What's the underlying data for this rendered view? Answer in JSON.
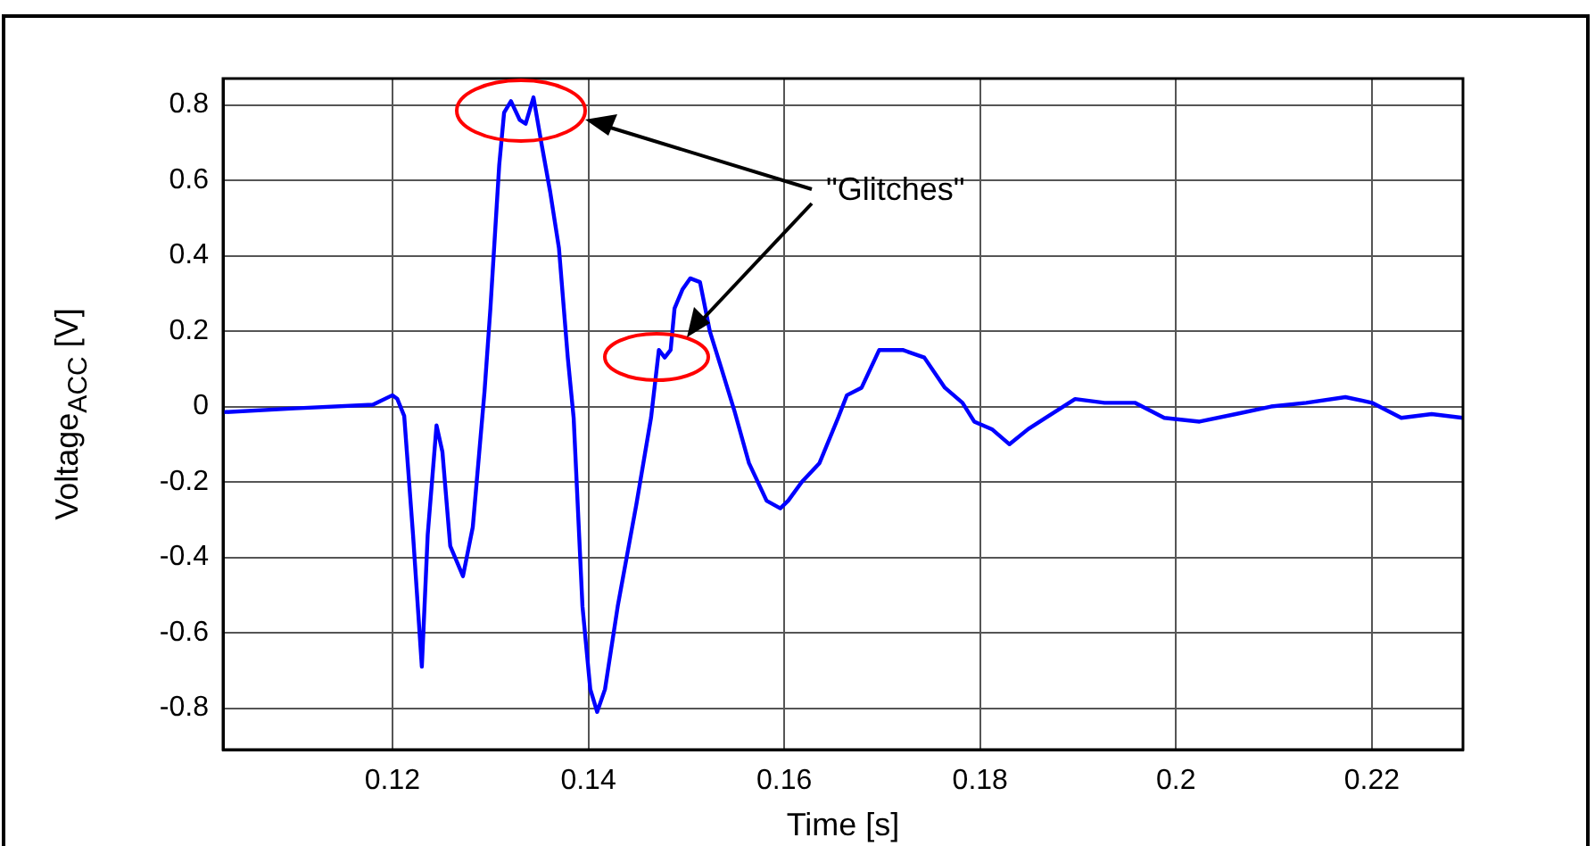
{
  "chart_data": {
    "type": "line",
    "xlabel": "Time [s]",
    "ylabel": "Voltage$_{ACC}$ [V]",
    "annotations": [
      "\"Glitches\""
    ],
    "xlim": [
      0.1027,
      0.2293
    ],
    "ylim": [
      -0.91,
      0.87
    ],
    "xticks": [
      0.12,
      0.14,
      0.16,
      0.18,
      0.2,
      0.22
    ],
    "yticks": [
      -0.8,
      -0.6,
      -0.4,
      -0.2,
      0,
      0.2,
      0.4,
      0.6,
      0.8
    ],
    "grid": true,
    "legend": false,
    "marker": "none",
    "line_style": "solid",
    "series": [
      {
        "color": "#0000ff",
        "x": [
          0.1027,
          0.11,
          0.118,
          0.12,
          0.1205,
          0.1212,
          0.1221,
          0.123,
          0.1236,
          0.1245,
          0.1251,
          0.1259,
          0.1272,
          0.1282,
          0.1294,
          0.13,
          0.1309,
          0.1314,
          0.1321,
          0.133,
          0.1336,
          0.1344,
          0.1352,
          0.1361,
          0.137,
          0.1379,
          0.1385,
          0.1394,
          0.1402,
          0.1409,
          0.1417,
          0.143,
          0.1449,
          0.1464,
          0.1472,
          0.1478,
          0.1484,
          0.1488,
          0.1496,
          0.1504,
          0.1514,
          0.1524,
          0.1536,
          0.1549,
          0.1564,
          0.1582,
          0.1596,
          0.1604,
          0.1618,
          0.1636,
          0.1655,
          0.1664,
          0.1679,
          0.1697,
          0.1721,
          0.1743,
          0.1764,
          0.1782,
          0.1794,
          0.1812,
          0.183,
          0.1849,
          0.1867,
          0.1897,
          0.1927,
          0.1958,
          0.1988,
          0.2024,
          0.2061,
          0.2097,
          0.2133,
          0.2173,
          0.22,
          0.223,
          0.2261,
          0.2293
        ],
        "values": [
          -0.015,
          -0.005,
          0.005,
          0.03,
          0.02,
          -0.025,
          -0.34,
          -0.69,
          -0.34,
          -0.05,
          -0.12,
          -0.37,
          -0.45,
          -0.32,
          0.04,
          0.26,
          0.64,
          0.78,
          0.81,
          0.76,
          0.75,
          0.82,
          0.7,
          0.57,
          0.42,
          0.13,
          -0.03,
          -0.53,
          -0.75,
          -0.81,
          -0.75,
          -0.53,
          -0.26,
          -0.03,
          0.15,
          0.13,
          0.15,
          0.26,
          0.31,
          0.34,
          0.33,
          0.2,
          0.1,
          -0.01,
          -0.15,
          -0.25,
          -0.27,
          -0.25,
          -0.2,
          -0.15,
          -0.03,
          0.03,
          0.05,
          0.15,
          0.15,
          0.13,
          0.05,
          0.01,
          -0.04,
          -0.06,
          -0.1,
          -0.06,
          -0.03,
          0.02,
          0.01,
          0.01,
          -0.03,
          -0.04,
          -0.02,
          0,
          0.01,
          0.025,
          0.01,
          -0.03,
          -0.02,
          -0.03
        ]
      }
    ]
  }
}
